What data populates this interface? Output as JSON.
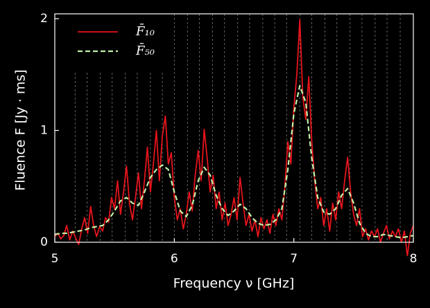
{
  "chart_data": {
    "type": "line",
    "x_label": "Frequency ν [GHz]",
    "y_label": "Fluence F [Jy · ms]",
    "xlim": [
      5,
      8
    ],
    "ylim": [
      0,
      2.043
    ],
    "xticks": [
      5,
      6,
      7,
      8
    ],
    "yticks": [
      0,
      1,
      2
    ],
    "legend": "upper left",
    "vlines": [
      5.17,
      5.27,
      5.38,
      5.48,
      5.59,
      5.69,
      5.8,
      5.9,
      6.0,
      6.11,
      6.21,
      6.32,
      6.42,
      6.53,
      6.63,
      6.74,
      6.84,
      6.94,
      7.05,
      7.15,
      7.26,
      7.36,
      7.47,
      7.57,
      7.68,
      7.78,
      7.89
    ],
    "series": [
      {
        "name": "F̄₁₀",
        "color": "#e8141c",
        "dash": false,
        "x": [
          5.0,
          5.025,
          5.05,
          5.075,
          5.1,
          5.125,
          5.15,
          5.175,
          5.2,
          5.225,
          5.25,
          5.275,
          5.3,
          5.325,
          5.35,
          5.375,
          5.4,
          5.425,
          5.45,
          5.475,
          5.5,
          5.525,
          5.55,
          5.575,
          5.6,
          5.625,
          5.65,
          5.675,
          5.7,
          5.725,
          5.75,
          5.775,
          5.8,
          5.825,
          5.85,
          5.875,
          5.9,
          5.925,
          5.95,
          5.975,
          6.0,
          6.025,
          6.05,
          6.075,
          6.1,
          6.125,
          6.15,
          6.175,
          6.2,
          6.225,
          6.25,
          6.275,
          6.3,
          6.325,
          6.35,
          6.375,
          6.4,
          6.425,
          6.45,
          6.475,
          6.5,
          6.525,
          6.55,
          6.575,
          6.6,
          6.625,
          6.65,
          6.675,
          6.7,
          6.725,
          6.75,
          6.775,
          6.8,
          6.825,
          6.85,
          6.875,
          6.9,
          6.925,
          6.95,
          6.975,
          7.0,
          7.025,
          7.05,
          7.075,
          7.1,
          7.125,
          7.15,
          7.175,
          7.2,
          7.225,
          7.25,
          7.275,
          7.3,
          7.325,
          7.35,
          7.375,
          7.4,
          7.425,
          7.45,
          7.475,
          7.5,
          7.525,
          7.55,
          7.575,
          7.6,
          7.625,
          7.65,
          7.675,
          7.7,
          7.725,
          7.75,
          7.775,
          7.8,
          7.825,
          7.85,
          7.875,
          7.9,
          7.925,
          7.95,
          7.975,
          8.0
        ],
        "values": [
          0.05,
          0.08,
          0.03,
          0.06,
          0.15,
          0.02,
          0.1,
          0.04,
          -0.02,
          0.12,
          0.22,
          0.08,
          0.32,
          0.15,
          0.05,
          0.14,
          0.1,
          0.22,
          0.18,
          0.4,
          0.3,
          0.55,
          0.25,
          0.45,
          0.68,
          0.35,
          0.2,
          0.4,
          0.62,
          0.3,
          0.55,
          0.85,
          0.45,
          0.7,
          1.0,
          0.55,
          0.95,
          1.13,
          0.7,
          0.8,
          0.4,
          0.2,
          0.3,
          0.12,
          0.25,
          0.45,
          0.28,
          0.6,
          0.82,
          0.55,
          1.01,
          0.75,
          0.45,
          0.6,
          0.3,
          0.45,
          0.2,
          0.35,
          0.15,
          0.25,
          0.4,
          0.2,
          0.58,
          0.35,
          0.15,
          0.25,
          0.1,
          0.2,
          0.05,
          0.22,
          0.12,
          0.2,
          0.08,
          0.25,
          0.15,
          0.3,
          0.2,
          0.5,
          0.9,
          0.7,
          1.2,
          1.5,
          1.99,
          1.3,
          1.1,
          1.48,
          0.9,
          0.55,
          0.3,
          0.4,
          0.15,
          0.3,
          0.1,
          0.35,
          0.2,
          0.45,
          0.3,
          0.55,
          0.76,
          0.45,
          0.25,
          0.15,
          0.3,
          0.05,
          0.12,
          0.02,
          0.1,
          0.05,
          0.12,
          0.0,
          0.08,
          0.15,
          0.03,
          0.1,
          0.05,
          0.12,
          0.0,
          0.1,
          -0.12,
          0.08,
          0.15
        ]
      },
      {
        "name": "F̄₅₀",
        "color": "#c2f2a8",
        "dash": true,
        "x": [
          5.0,
          5.05,
          5.1,
          5.15,
          5.2,
          5.25,
          5.3,
          5.35,
          5.4,
          5.45,
          5.5,
          5.55,
          5.6,
          5.65,
          5.7,
          5.75,
          5.8,
          5.85,
          5.9,
          5.95,
          6.0,
          6.05,
          6.1,
          6.15,
          6.2,
          6.25,
          6.3,
          6.35,
          6.4,
          6.45,
          6.5,
          6.55,
          6.6,
          6.65,
          6.7,
          6.75,
          6.8,
          6.85,
          6.9,
          6.95,
          7.0,
          7.05,
          7.1,
          7.15,
          7.2,
          7.25,
          7.3,
          7.35,
          7.4,
          7.45,
          7.5,
          7.55,
          7.6,
          7.65,
          7.7,
          7.75,
          7.8,
          7.85,
          7.9,
          7.95,
          8.0
        ],
        "values": [
          0.07,
          0.08,
          0.08,
          0.09,
          0.1,
          0.11,
          0.13,
          0.14,
          0.15,
          0.2,
          0.28,
          0.37,
          0.4,
          0.35,
          0.33,
          0.45,
          0.58,
          0.65,
          0.69,
          0.65,
          0.45,
          0.28,
          0.23,
          0.33,
          0.55,
          0.67,
          0.6,
          0.42,
          0.3,
          0.24,
          0.28,
          0.34,
          0.3,
          0.22,
          0.17,
          0.15,
          0.16,
          0.2,
          0.3,
          0.65,
          1.15,
          1.4,
          1.25,
          0.75,
          0.4,
          0.27,
          0.25,
          0.3,
          0.42,
          0.48,
          0.35,
          0.17,
          0.08,
          0.05,
          0.05,
          0.07,
          0.06,
          0.05,
          0.04,
          0.05,
          0.06
        ]
      }
    ]
  }
}
